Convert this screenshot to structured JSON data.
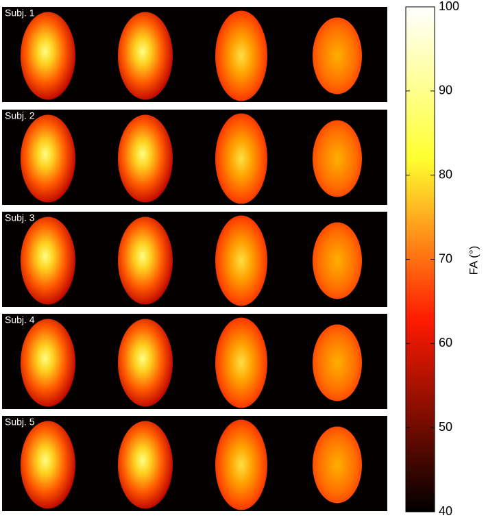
{
  "chart_data": {
    "type": "heatmap",
    "panel_labels": [
      "Subj. 1",
      "Subj. 2",
      "Subj. 3",
      "Subj. 4",
      "Subj. 5"
    ],
    "ylabel": "FA (°)",
    "ylim": [
      40,
      100
    ],
    "yticks": [
      40,
      50,
      60,
      70,
      80,
      90,
      100
    ]
  }
}
